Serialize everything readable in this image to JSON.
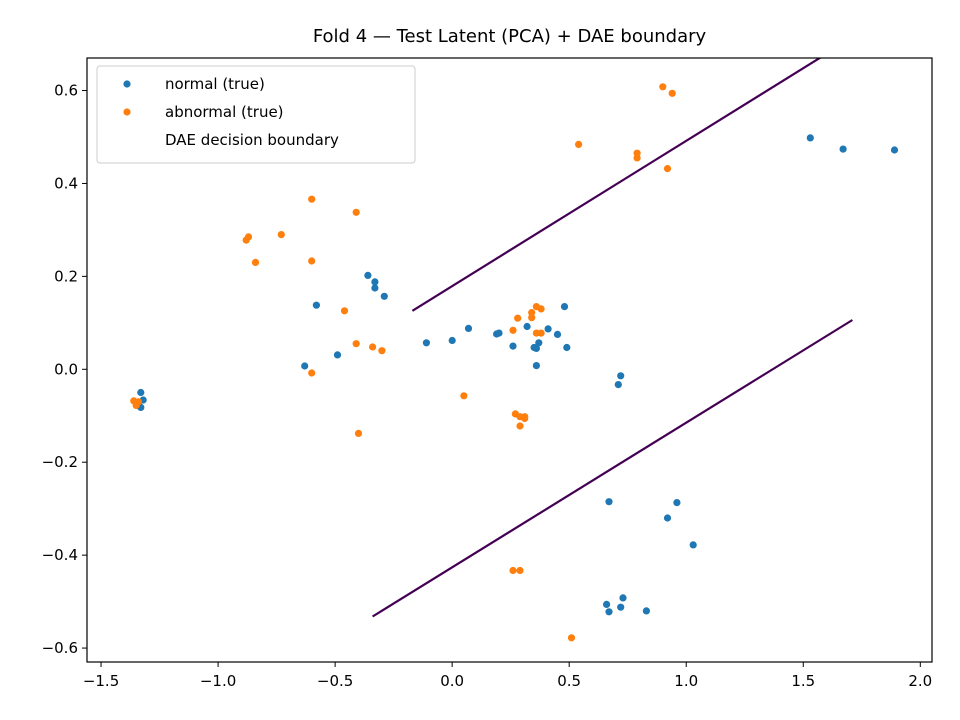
{
  "chart_data": {
    "type": "scatter",
    "title": "Fold 4 — Test Latent (PCA) + DAE boundary",
    "xlabel": "",
    "ylabel": "",
    "xlim": [
      -1.56,
      2.05
    ],
    "ylim": [
      -0.63,
      0.67
    ],
    "xticks": [
      -1.5,
      -1.0,
      -0.5,
      0.0,
      0.5,
      1.0,
      1.5,
      2.0
    ],
    "xtick_labels": [
      "−1.5",
      "−1.0",
      "−0.5",
      "0.0",
      "0.5",
      "1.0",
      "1.5",
      "2.0"
    ],
    "yticks": [
      -0.6,
      -0.4,
      -0.2,
      0.0,
      0.2,
      0.4,
      0.6
    ],
    "ytick_labels": [
      "−0.6",
      "−0.4",
      "−0.2",
      "0.0",
      "0.2",
      "0.4",
      "0.6"
    ],
    "grid": false,
    "legend_position": "top-left",
    "series": [
      {
        "name": "normal (true)",
        "kind": "scatter",
        "color": "#1f77b4",
        "points": [
          [
            -1.33,
            -0.05
          ],
          [
            -1.32,
            -0.066
          ],
          [
            -1.33,
            -0.082
          ],
          [
            -1.34,
            -0.072
          ],
          [
            -0.58,
            0.138
          ],
          [
            -0.63,
            0.007
          ],
          [
            -0.49,
            0.031
          ],
          [
            -0.36,
            0.202
          ],
          [
            -0.33,
            0.188
          ],
          [
            -0.33,
            0.175
          ],
          [
            -0.29,
            0.157
          ],
          [
            -0.11,
            0.057
          ],
          [
            0.0,
            0.062
          ],
          [
            0.07,
            0.088
          ],
          [
            0.19,
            0.076
          ],
          [
            0.2,
            0.078
          ],
          [
            0.26,
            0.05
          ],
          [
            0.32,
            0.092
          ],
          [
            0.35,
            0.047
          ],
          [
            0.36,
            0.045
          ],
          [
            0.37,
            0.057
          ],
          [
            0.36,
            0.008
          ],
          [
            0.41,
            0.087
          ],
          [
            0.45,
            0.075
          ],
          [
            0.48,
            0.135
          ],
          [
            0.49,
            0.047
          ],
          [
            0.71,
            -0.033
          ],
          [
            0.72,
            -0.014
          ],
          [
            1.53,
            0.498
          ],
          [
            1.67,
            0.474
          ],
          [
            1.89,
            0.472
          ],
          [
            0.67,
            -0.285
          ],
          [
            0.96,
            -0.287
          ],
          [
            0.92,
            -0.32
          ],
          [
            1.03,
            -0.378
          ],
          [
            0.66,
            -0.506
          ],
          [
            0.67,
            -0.522
          ],
          [
            0.72,
            -0.512
          ],
          [
            0.73,
            -0.492
          ],
          [
            0.83,
            -0.52
          ]
        ]
      },
      {
        "name": "abnormal (true)",
        "kind": "scatter",
        "color": "#ff7f0e",
        "points": [
          [
            -1.36,
            -0.068
          ],
          [
            -1.35,
            -0.072
          ],
          [
            -1.34,
            -0.07
          ],
          [
            -1.35,
            -0.078
          ],
          [
            -0.88,
            0.278
          ],
          [
            -0.87,
            0.285
          ],
          [
            -0.84,
            0.23
          ],
          [
            -0.73,
            0.29
          ],
          [
            -0.6,
            0.366
          ],
          [
            -0.6,
            0.233
          ],
          [
            -0.6,
            -0.008
          ],
          [
            -0.46,
            0.126
          ],
          [
            -0.41,
            0.338
          ],
          [
            -0.41,
            0.055
          ],
          [
            -0.4,
            -0.138
          ],
          [
            -0.34,
            0.048
          ],
          [
            -0.3,
            0.04
          ],
          [
            0.05,
            -0.057
          ],
          [
            0.26,
            0.084
          ],
          [
            0.28,
            0.11
          ],
          [
            0.34,
            0.111
          ],
          [
            0.34,
            0.122
          ],
          [
            0.36,
            0.078
          ],
          [
            0.36,
            0.135
          ],
          [
            0.38,
            0.078
          ],
          [
            0.38,
            0.13
          ],
          [
            0.27,
            -0.096
          ],
          [
            0.29,
            -0.102
          ],
          [
            0.29,
            -0.122
          ],
          [
            0.31,
            -0.102
          ],
          [
            0.31,
            -0.106
          ],
          [
            0.54,
            0.484
          ],
          [
            0.79,
            0.455
          ],
          [
            0.79,
            0.465
          ],
          [
            0.92,
            0.432
          ],
          [
            0.9,
            0.608
          ],
          [
            0.94,
            0.594
          ],
          [
            0.26,
            -0.433
          ],
          [
            0.29,
            -0.433
          ],
          [
            0.51,
            -0.578
          ]
        ]
      },
      {
        "name": "DAE decision boundary",
        "kind": "line",
        "color": "#440154",
        "segments": [
          [
            [
              -0.17,
              0.126
            ],
            [
              1.97,
              0.795
            ]
          ],
          [
            [
              -0.34,
              -0.532
            ],
            [
              1.71,
              0.106
            ]
          ]
        ]
      }
    ]
  }
}
